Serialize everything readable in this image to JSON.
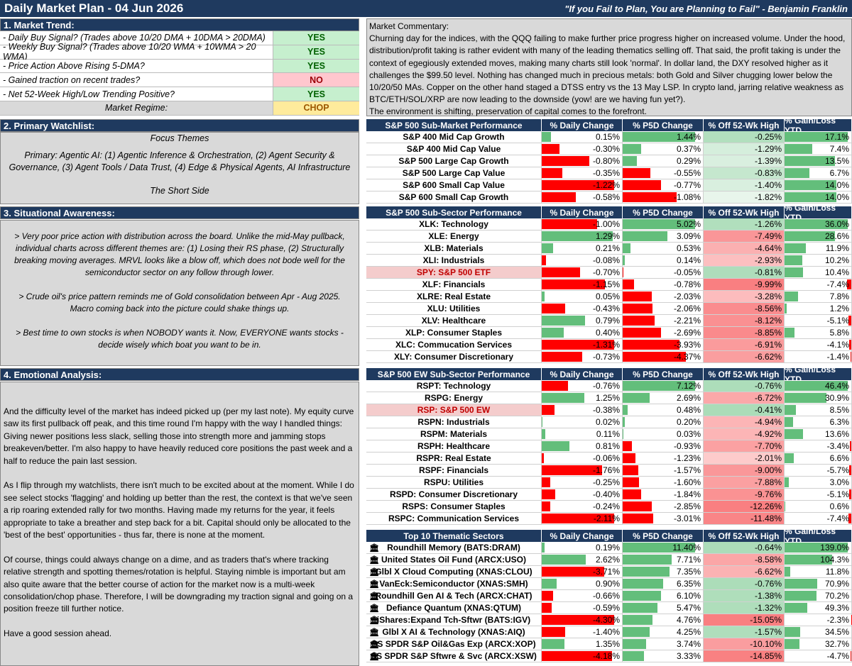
{
  "header": {
    "title": "Daily Market Plan - 04 Jun 2026",
    "quote": "\"If you Fail to Plan, You are Planning to Fail\" - Benjamin Franklin"
  },
  "sections": {
    "trend": "1. Market Trend:",
    "watchlist": "2. Primary Watchlist:",
    "situational": "3. Situational Awareness:",
    "emotional": "4. Emotional Analysis:"
  },
  "trend": [
    {
      "label": "-  Daily Buy Signal? (Trades above 10/20 DMA + 10DMA > 20DMA)",
      "value": "YES",
      "status": "yes"
    },
    {
      "label": "-  Weekly Buy Signal? (Trades above 10/20 WMA + 10WMA > 20 WMA)",
      "value": "YES",
      "status": "yes"
    },
    {
      "label": "-  Price Action Above Rising 5-DMA?",
      "value": "YES",
      "status": "yes"
    },
    {
      "label": "-  Gained traction on recent trades?",
      "value": "NO",
      "status": "no"
    },
    {
      "label": "-  Net 52-Week High/Low Trending Positive?",
      "value": "YES",
      "status": "yes"
    },
    {
      "label": "Market Regime:",
      "value": "CHOP",
      "status": "chop"
    }
  ],
  "commentary": {
    "heading": "Market Commentary:",
    "body": "Churning day for the indices, with the QQQ failing to make further price progress higher on increased volume. Under the hood, distribution/profit taking is rather evident with many of the leading thematics selling off. That said, the profit taking is under the context of egegiously extended moves, making many charts still look 'normal'. In dollar land, the DXY resolved higher as it challenges the $99.50 level. Nothing has changed much in precious metals: both Gold and Silver chugging lower below the 10/20/50 MAs. Copper on the other hand staged a DTSS entry vs the 13 May LSP. In crypto land, jarring relative weakness as BTC/ETH/SOL/XRP are now leading to the downside (yow! are we having fun yet?).",
    "closing": "The environment is shifting, preservation of capital comes to the forefront."
  },
  "watchlist": {
    "focus": "Focus Themes",
    "primary": "Primary: Agentic AI: (1) Agentic Inference & Orchestration, (2) Agent Security & Governance, (3) Agent Tools / Data Trust, (4) Edge & Physical Agents, AI Infrastructure",
    "short": "The Short Side"
  },
  "situational": [
    "> Very poor price action with distribution across the board. Unlike the mid-May pullback, individual charts across different themes are: (1) Losing their RS phase, (2) Structurally breaking moving averages. MRVL looks like a blow off, which does not bode well for the semiconductor sector on any follow through lower.",
    "> Crude oil's price pattern reminds me of Gold consolidation between Apr - Aug 2025. Macro coming back into the picture could shake things up.",
    "> Best time to own stocks is when NOBODY wants it. Now, EVERYONE wants stocks - decide wisely which boat you want to be in."
  ],
  "emotional": [
    "And the difficulty level of the market has indeed picked up (per my last note). My equity curve saw its first pullback off peak, and this time round I'm happy with the way I handled things: Giving newer positions less slack, selling those into strength more and jamming stops breakeven/better. I'm also happy to have heavily reduced core positions the past week and a half to reduce the pain last session.",
    "As I flip through my watchlists, there isn't much to be excited about at the moment. While I do see select stocks 'flagging' and holding up better than the rest, the context is that we've seen a rip roaring extended rally for two months. Having made my returns for the year, it feels appropriate to take a breather and step back for a bit. Capital should only be allocated to the 'best of the best' opportunities - thus far, there is none at the moment.",
    "Of course, things could always change on a dime, and as traders that's where tracking relative strength and spotting themes/rotation is helpful. Staying nimble is important but am also quite aware that the better course of action for the market now is a multi-week consolidation/chop phase. Therefore, I will be downgrading my traction signal and going on a position freeze till further notice.",
    "Have a good session ahead."
  ],
  "colors": {
    "header_bg": "#1f3a5f",
    "positive": "#63be7b",
    "negative": "#ff0000",
    "panel": "#d9d9d9"
  },
  "tables": [
    {
      "headers": [
        "S&P 500 Sub-Market Performance",
        "% Daily Change",
        "% P5D Change",
        "% Off 52-Wk High",
        "% Gain/Loss YTD"
      ],
      "rows": [
        {
          "name": "S&P 400 Mid Cap Growth",
          "daily": "0.15%",
          "p5d": "1.44%",
          "off": "-0.25%",
          "ytd": "17.1%"
        },
        {
          "name": "S&P 400 Mid Cap Value",
          "daily": "-0.30%",
          "p5d": "0.37%",
          "off": "-1.29%",
          "ytd": "7.4%"
        },
        {
          "name": "S&P 500 Large Cap Growth",
          "daily": "-0.80%",
          "p5d": "0.29%",
          "off": "-1.39%",
          "ytd": "13.5%"
        },
        {
          "name": "S&P 500 Large Cap Value",
          "daily": "-0.35%",
          "p5d": "-0.55%",
          "off": "-0.83%",
          "ytd": "6.7%"
        },
        {
          "name": "S&P 600 Small Cap Value",
          "daily": "-1.22%",
          "p5d": "-0.77%",
          "off": "-1.40%",
          "ytd": "14.0%"
        },
        {
          "name": "S&P 600 Small Cap Growth",
          "daily": "-0.58%",
          "p5d": "-1.08%",
          "off": "-1.82%",
          "ytd": "14.0%"
        }
      ]
    },
    {
      "headers": [
        "S&P 500 Sub-Sector Performance",
        "% Daily Change",
        "% P5D Change",
        "% Off 52-Wk High",
        "% Gain/Loss YTD"
      ],
      "rows": [
        {
          "name": "XLK: Technology",
          "daily": "-1.00%",
          "p5d": "5.02%",
          "off": "-1.26%",
          "ytd": "36.0%"
        },
        {
          "name": "XLE: Energy",
          "daily": "1.29%",
          "p5d": "3.09%",
          "off": "-7.49%",
          "ytd": "28.6%"
        },
        {
          "name": "XLB: Materials",
          "daily": "0.21%",
          "p5d": "0.53%",
          "off": "-4.64%",
          "ytd": "11.9%"
        },
        {
          "name": "XLI: Industrials",
          "daily": "-0.08%",
          "p5d": "0.14%",
          "off": "-2.93%",
          "ytd": "10.2%"
        },
        {
          "name": "SPY: S&P 500 ETF",
          "daily": "-0.70%",
          "p5d": "-0.05%",
          "off": "-0.81%",
          "ytd": "10.4%",
          "highlight": true
        },
        {
          "name": "XLF: Financials",
          "daily": "-1.15%",
          "p5d": "-0.78%",
          "off": "-9.99%",
          "ytd": "-7.4%"
        },
        {
          "name": "XLRE: Real Estate",
          "daily": "0.05%",
          "p5d": "-2.03%",
          "off": "-3.28%",
          "ytd": "7.8%"
        },
        {
          "name": "XLU: Utilities",
          "daily": "-0.43%",
          "p5d": "-2.06%",
          "off": "-8.56%",
          "ytd": "1.2%"
        },
        {
          "name": "XLV: Healthcare",
          "daily": "0.79%",
          "p5d": "-2.21%",
          "off": "-8.12%",
          "ytd": "-5.1%"
        },
        {
          "name": "XLP: Consumer Staples",
          "daily": "0.40%",
          "p5d": "-2.69%",
          "off": "-8.85%",
          "ytd": "5.8%"
        },
        {
          "name": "XLC: Commucation Services",
          "daily": "-1.31%",
          "p5d": "-3.93%",
          "off": "-6.91%",
          "ytd": "-4.1%"
        },
        {
          "name": "XLY: Consumer Discretionary",
          "daily": "-0.73%",
          "p5d": "-4.37%",
          "off": "-6.62%",
          "ytd": "-1.4%"
        }
      ]
    },
    {
      "headers": [
        "S&P 500 EW Sub-Sector Performance",
        "% Daily Change",
        "% P5D Change",
        "% Off 52-Wk High",
        "% Gain/Loss YTD"
      ],
      "rows": [
        {
          "name": "RSPT: Technology",
          "daily": "-0.76%",
          "p5d": "7.12%",
          "off": "-0.76%",
          "ytd": "46.4%"
        },
        {
          "name": "RSPG: Energy",
          "daily": "1.25%",
          "p5d": "2.69%",
          "off": "-6.72%",
          "ytd": "30.9%"
        },
        {
          "name": "RSP: S&P 500 EW",
          "daily": "-0.38%",
          "p5d": "0.48%",
          "off": "-0.41%",
          "ytd": "8.5%",
          "highlight": true
        },
        {
          "name": "RSPN: Industrials",
          "daily": "0.02%",
          "p5d": "0.20%",
          "off": "-4.94%",
          "ytd": "6.3%"
        },
        {
          "name": "RSPM: Materials",
          "daily": "0.11%",
          "p5d": "0.03%",
          "off": "-4.92%",
          "ytd": "13.6%"
        },
        {
          "name": "RSPH: Healthcare",
          "daily": "0.81%",
          "p5d": "-0.93%",
          "off": "-7.70%",
          "ytd": "-3.4%"
        },
        {
          "name": "RSPR: Real Estate",
          "daily": "-0.06%",
          "p5d": "-1.23%",
          "off": "-2.01%",
          "ytd": "6.6%"
        },
        {
          "name": "RSPF: Financials",
          "daily": "-1.76%",
          "p5d": "-1.57%",
          "off": "-9.00%",
          "ytd": "-5.7%"
        },
        {
          "name": "RSPU: Utilities",
          "daily": "-0.25%",
          "p5d": "-1.60%",
          "off": "-7.88%",
          "ytd": "3.0%"
        },
        {
          "name": "RSPD: Consumer Discretionary",
          "daily": "-0.40%",
          "p5d": "-1.84%",
          "off": "-9.76%",
          "ytd": "-5.1%"
        },
        {
          "name": "RSPS: Consumer Staples",
          "daily": "-0.24%",
          "p5d": "-2.85%",
          "off": "-12.26%",
          "ytd": "0.6%"
        },
        {
          "name": "RSPC: Communication Services",
          "daily": "-2.11%",
          "p5d": "-3.01%",
          "off": "-11.48%",
          "ytd": "-7.4%"
        }
      ]
    },
    {
      "headers": [
        "Top 10 Thematic Sectors",
        "% Daily Change",
        "% P5D Change",
        "% Off 52-Wk High",
        "% Gain/Loss YTD"
      ],
      "icon": "bank-icon",
      "rows": [
        {
          "name": "Roundhill Memory (BATS:DRAM)",
          "daily": "0.19%",
          "p5d": "11.40%",
          "off": "-0.64%",
          "ytd": "139.0%"
        },
        {
          "name": "United States Oil Fund (ARCX:USO)",
          "daily": "2.62%",
          "p5d": "7.71%",
          "off": "-8.58%",
          "ytd": "104.3%"
        },
        {
          "name": "Glbl X Cloud Computing (XNAS:CLOU)",
          "daily": "-3.71%",
          "p5d": "7.35%",
          "off": "-6.62%",
          "ytd": "11.8%"
        },
        {
          "name": "VanEck:Semiconductor (XNAS:SMH)",
          "daily": "0.90%",
          "p5d": "6.35%",
          "off": "-0.76%",
          "ytd": "70.9%"
        },
        {
          "name": "Roundhill Gen AI & Tech (ARCX:CHAT)",
          "daily": "-0.66%",
          "p5d": "6.10%",
          "off": "-1.38%",
          "ytd": "70.2%"
        },
        {
          "name": "Defiance Quantum (XNAS:QTUM)",
          "daily": "-0.59%",
          "p5d": "5.47%",
          "off": "-1.32%",
          "ytd": "49.3%"
        },
        {
          "name": "iShares:Expand Tch-Sftwr (BATS:IGV)",
          "daily": "-4.30%",
          "p5d": "4.76%",
          "off": "-15.05%",
          "ytd": "-2.3%"
        },
        {
          "name": "Glbl X AI & Technology (XNAS:AIQ)",
          "daily": "-1.40%",
          "p5d": "4.25%",
          "off": "-1.57%",
          "ytd": "34.5%"
        },
        {
          "name": "SS SPDR S&P Oil&Gas Exp (ARCX:XOP)",
          "daily": "1.35%",
          "p5d": "3.74%",
          "off": "-10.10%",
          "ytd": "32.7%"
        },
        {
          "name": "SS SPDR S&P Sftwre & Svc (ARCX:XSW)",
          "daily": "-4.18%",
          "p5d": "3.33%",
          "off": "-14.85%",
          "ytd": "-4.7%"
        }
      ]
    }
  ]
}
